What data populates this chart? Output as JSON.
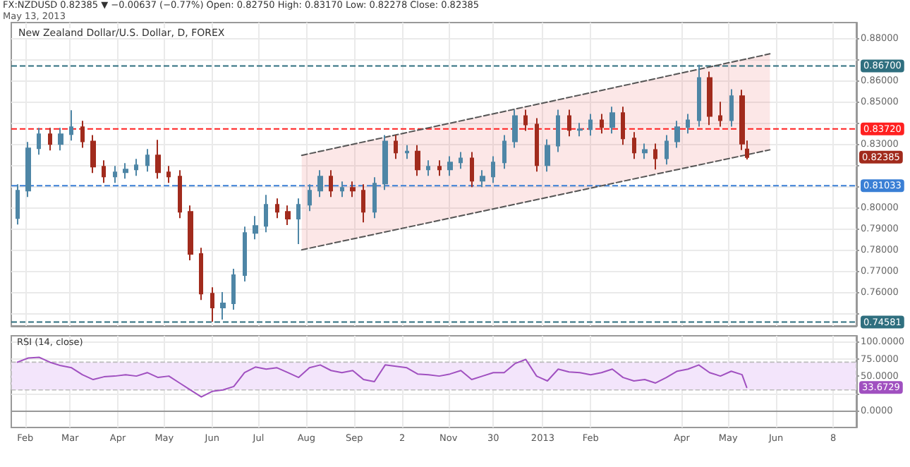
{
  "chart_data": [
    {
      "type": "candlestick",
      "title": "FX:NZDUSD 0.82385 ▼ −0.00637 (−0.77%) Open: 0.82750 High: 0.83170 Low: 0.82278 Close: 0.82385",
      "subtitle": "May 13, 2013",
      "annotations": [
        "New Zealand Dollar/U.S. Dollar, D, FOREX",
        "0.82385"
      ],
      "xlim": [
        "2012-01-23",
        "2013-07-23"
      ],
      "xticks": [
        {
          "value": "2012-02-01",
          "label": null
        },
        {
          "value": "2012-03-01",
          "label": null
        },
        {
          "value": "2012-04-01",
          "label": null
        },
        {
          "value": "2012-05-01",
          "label": null
        },
        {
          "value": "2012-06-01",
          "label": null
        },
        {
          "value": "2012-07-01",
          "label": null
        },
        {
          "value": "2012-08-01",
          "label": null
        },
        {
          "value": "2012-09-01",
          "label": null
        },
        {
          "value": "2012-10-02",
          "label": null
        },
        {
          "value": "2012-11-01",
          "label": null
        },
        {
          "value": "2012-11-30",
          "label": null
        },
        {
          "value": "2013-01-01",
          "label": null
        },
        {
          "value": "2013-02-01",
          "label": null
        },
        {
          "value": "2013-04-01",
          "label": null
        },
        {
          "value": "2013-05-01",
          "label": null
        },
        {
          "value": "2013-06-01",
          "label": null
        },
        {
          "value": "2013-07-08",
          "label": null
        }
      ],
      "ylim": [
        0.744,
        0.8875
      ],
      "yticks": [
        {
          "value": 0.75,
          "label": null
        },
        {
          "value": 0.76,
          "label": "0.76000"
        },
        {
          "value": 0.77,
          "label": "0.77000"
        },
        {
          "value": 0.78,
          "label": "0.78000"
        },
        {
          "value": 0.79,
          "label": "0.79000"
        },
        {
          "value": 0.8,
          "label": "0.80000"
        },
        {
          "value": 0.81,
          "label": null
        },
        {
          "value": 0.82,
          "label": null
        },
        {
          "value": 0.83,
          "label": "0.83000"
        },
        {
          "value": 0.84,
          "label": null
        },
        {
          "value": 0.85,
          "label": "0.85000"
        },
        {
          "value": 0.86,
          "label": "0.86000"
        },
        {
          "value": 0.87,
          "label": null
        },
        {
          "value": 0.88,
          "label": "0.88000"
        }
      ],
      "tick_labels": "y",
      "grid": true,
      "ref_lines": [
        {
          "axis": "y",
          "value": 0.867,
          "label": "0.86700",
          "color": "#2f6f7f",
          "line_style": "dashed"
        },
        {
          "axis": "y",
          "value": 0.8372,
          "label": "0.83720",
          "color": "#ff2020",
          "line_style": "dashed"
        },
        {
          "axis": "y",
          "value": 0.81033,
          "label": "0.81033",
          "color": "#3a7fd5",
          "line_style": "dashed"
        },
        {
          "axis": "y",
          "value": 0.74581,
          "label": "0.74581",
          "color": "#2f6f7f",
          "line_style": "dashed"
        }
      ],
      "series": [
        {
          "x": [
            "2012-01-27",
            "2012-02-03",
            "2012-02-10",
            "2012-02-17",
            "2012-02-24",
            "2012-03-02",
            "2012-03-09",
            "2012-03-16",
            "2012-03-23",
            "2012-03-30",
            "2012-04-06",
            "2012-04-13",
            "2012-04-20",
            "2012-04-27",
            "2012-05-04",
            "2012-05-11",
            "2012-05-18",
            "2012-05-25",
            "2012-06-01",
            "2012-06-08",
            "2012-06-15",
            "2012-06-22",
            "2012-06-29",
            "2012-07-06",
            "2012-07-13",
            "2012-07-20",
            "2012-07-27",
            "2012-08-03",
            "2012-08-10",
            "2012-08-17",
            "2012-08-24",
            "2012-08-31",
            "2012-09-07",
            "2012-09-14",
            "2012-09-21",
            "2012-09-28",
            "2012-10-05",
            "2012-10-12",
            "2012-10-19",
            "2012-10-26",
            "2012-11-02",
            "2012-11-09",
            "2012-11-16",
            "2012-11-23",
            "2012-11-30",
            "2012-12-07",
            "2012-12-14",
            "2012-12-21",
            "2012-12-28",
            "2013-01-04",
            "2013-01-11",
            "2013-01-18",
            "2013-01-25",
            "2013-02-01",
            "2013-02-08",
            "2013-02-15",
            "2013-02-22",
            "2013-03-01",
            "2013-03-08",
            "2013-03-15",
            "2013-03-22",
            "2013-03-29",
            "2013-04-05",
            "2013-04-12",
            "2013-04-19",
            "2013-04-26",
            "2013-05-03",
            "2013-05-10",
            "2013-05-13"
          ],
          "ohlc": [
            [
              0.795,
              0.811,
              0.792,
              0.808
            ],
            [
              0.808,
              0.831,
              0.805,
              0.828
            ],
            [
              0.828,
              0.8377,
              0.825,
              0.8347
            ],
            [
              0.8347,
              0.8377,
              0.827,
              0.83
            ],
            [
              0.83,
              0.8377,
              0.827,
              0.8347
            ],
            [
              0.8347,
              0.846,
              0.8317,
              0.838
            ],
            [
              0.838,
              0.841,
              0.8283,
              0.8313
            ],
            [
              0.8313,
              0.8343,
              0.8163,
              0.8193
            ],
            [
              0.8193,
              0.8223,
              0.8117,
              0.8147
            ],
            [
              0.8147,
              0.8197,
              0.8117,
              0.8167
            ],
            [
              0.8167,
              0.821,
              0.8137,
              0.818
            ],
            [
              0.818,
              0.823,
              0.815,
              0.82
            ],
            [
              0.82,
              0.8277,
              0.817,
              0.8247
            ],
            [
              0.8247,
              0.832,
              0.8137,
              0.8167
            ],
            [
              0.8167,
              0.8197,
              0.8117,
              0.8147
            ],
            [
              0.8147,
              0.8177,
              0.795,
              0.798
            ],
            [
              0.798,
              0.801,
              0.775,
              0.778
            ],
            [
              0.778,
              0.781,
              0.7563,
              0.7593
            ],
            [
              0.7593,
              0.7623,
              0.746,
              0.7527
            ],
            [
              0.7527,
              0.76,
              0.747,
              0.7547
            ],
            [
              0.7547,
              0.771,
              0.7517,
              0.768
            ],
            [
              0.768,
              0.791,
              0.765,
              0.788
            ],
            [
              0.788,
              0.796,
              0.785,
              0.7913
            ],
            [
              0.7913,
              0.806,
              0.7883,
              0.8013
            ],
            [
              0.8013,
              0.8043,
              0.795,
              0.798
            ],
            [
              0.798,
              0.801,
              0.7917,
              0.7947
            ],
            [
              0.7947,
              0.8043,
              0.7827,
              0.8013
            ],
            [
              0.8013,
              0.811,
              0.7983,
              0.808
            ],
            [
              0.808,
              0.8177,
              0.805,
              0.8147
            ],
            [
              0.8147,
              0.8177,
              0.805,
              0.808
            ],
            [
              0.808,
              0.8123,
              0.805,
              0.8093
            ],
            [
              0.8093,
              0.8123,
              0.805,
              0.808
            ],
            [
              0.808,
              0.811,
              0.793,
              0.798
            ],
            [
              0.798,
              0.8143,
              0.795,
              0.8113
            ],
            [
              0.8113,
              0.8343,
              0.8083,
              0.8313
            ],
            [
              0.8313,
              0.8343,
              0.823,
              0.826
            ],
            [
              0.826,
              0.8295,
              0.823,
              0.8265
            ],
            [
              0.8265,
              0.8295,
              0.815,
              0.818
            ],
            [
              0.818,
              0.8223,
              0.815,
              0.8193
            ],
            [
              0.8193,
              0.8223,
              0.815,
              0.818
            ],
            [
              0.818,
              0.8243,
              0.815,
              0.8213
            ],
            [
              0.8213,
              0.8263,
              0.8183,
              0.8233
            ],
            [
              0.8233,
              0.8263,
              0.8097,
              0.8127
            ],
            [
              0.8127,
              0.8177,
              0.8097,
              0.8147
            ],
            [
              0.8147,
              0.8243,
              0.8117,
              0.8213
            ],
            [
              0.8213,
              0.8343,
              0.8183,
              0.8313
            ],
            [
              0.8313,
              0.8463,
              0.8283,
              0.8433
            ],
            [
              0.8433,
              0.8463,
              0.8363,
              0.8393
            ],
            [
              0.8393,
              0.8423,
              0.817,
              0.82
            ],
            [
              0.82,
              0.8323,
              0.817,
              0.8293
            ],
            [
              0.8293,
              0.8463,
              0.8263,
              0.8433
            ],
            [
              0.8433,
              0.8463,
              0.8337,
              0.8367
            ],
            [
              0.8367,
              0.84,
              0.8337,
              0.837
            ],
            [
              0.837,
              0.8443,
              0.834,
              0.8413
            ],
            [
              0.8413,
              0.8443,
              0.835,
              0.838
            ],
            [
              0.838,
              0.8477,
              0.835,
              0.8447
            ],
            [
              0.8447,
              0.8477,
              0.8297,
              0.8327
            ],
            [
              0.8327,
              0.8357,
              0.823,
              0.826
            ],
            [
              0.826,
              0.8303,
              0.823,
              0.8273
            ],
            [
              0.8273,
              0.8303,
              0.818,
              0.8233
            ],
            [
              0.8233,
              0.8343,
              0.8203,
              0.8313
            ],
            [
              0.8313,
              0.841,
              0.8283,
              0.838
            ],
            [
              0.838,
              0.8443,
              0.835,
              0.8413
            ],
            [
              0.8413,
              0.8676,
              0.8383,
              0.8613
            ],
            [
              0.8613,
              0.8643,
              0.839,
              0.8433
            ],
            [
              0.8433,
              0.85,
              0.8383,
              0.8413
            ],
            [
              0.8413,
              0.856,
              0.8383,
              0.8527
            ],
            [
              0.8527,
              0.8557,
              0.8272,
              0.8302
            ],
            [
              0.8275,
              0.8317,
              0.82278,
              0.82385
            ]
          ],
          "colors": [
            "#4e86a6",
            "#4e86a6",
            "#4e86a6",
            "#a12b1d",
            "#4e86a6",
            "#4e86a6",
            "#a12b1d",
            "#a12b1d",
            "#a12b1d",
            "#4e86a6",
            "#4e86a6",
            "#4e86a6",
            "#4e86a6",
            "#a12b1d",
            "#a12b1d",
            "#a12b1d",
            "#a12b1d",
            "#a12b1d",
            "#a12b1d",
            "#4e86a6",
            "#4e86a6",
            "#4e86a6",
            "#4e86a6",
            "#4e86a6",
            "#a12b1d",
            "#a12b1d",
            "#4e86a6",
            "#4e86a6",
            "#4e86a6",
            "#a12b1d",
            "#4e86a6",
            "#a12b1d",
            "#a12b1d",
            "#4e86a6",
            "#4e86a6",
            "#a12b1d",
            "#4e86a6",
            "#a12b1d",
            "#4e86a6",
            "#a12b1d",
            "#4e86a6",
            "#4e86a6",
            "#a12b1d",
            "#4e86a6",
            "#4e86a6",
            "#4e86a6",
            "#4e86a6",
            "#a12b1d",
            "#a12b1d",
            "#4e86a6",
            "#4e86a6",
            "#a12b1d",
            "#4e86a6",
            "#4e86a6",
            "#a12b1d",
            "#4e86a6",
            "#a12b1d",
            "#a12b1d",
            "#4e86a6",
            "#a12b1d",
            "#4e86a6",
            "#4e86a6",
            "#4e86a6",
            "#4e86a6",
            "#a12b1d",
            "#a12b1d",
            "#4e86a6",
            "#a12b1d",
            "#a12b1d"
          ]
        },
        {
          "type": "line",
          "x": [
            "2012-07-29",
            "2013-05-28"
          ],
          "values": [
            0.8247,
            0.8727
          ],
          "lower": [
            0.78,
            0.8273
          ],
          "upper": [
            0.8247,
            0.8727
          ],
          "color": "#555555",
          "line_style": "dashed"
        },
        {
          "type": "line",
          "x": [
            "2012-07-29",
            "2013-05-28"
          ],
          "values": [
            0.78,
            0.8273
          ],
          "color": "#555555",
          "line_style": "dashed"
        }
      ]
    },
    {
      "type": "line",
      "title": "RSI (14, close)",
      "annotations": [
        "33.6729"
      ],
      "xlim": [
        "2012-01-23",
        "2013-07-23"
      ],
      "xticks": [
        {
          "value": "2012-02-01",
          "label": "Feb"
        },
        {
          "value": "2012-03-01",
          "label": "Mar"
        },
        {
          "value": "2012-04-01",
          "label": "Apr"
        },
        {
          "value": "2012-05-01",
          "label": "May"
        },
        {
          "value": "2012-06-01",
          "label": "Jun"
        },
        {
          "value": "2012-07-01",
          "label": "Jul"
        },
        {
          "value": "2012-08-01",
          "label": "Aug"
        },
        {
          "value": "2012-09-01",
          "label": "Sep"
        },
        {
          "value": "2012-10-02",
          "label": "2"
        },
        {
          "value": "2012-11-01",
          "label": "Nov"
        },
        {
          "value": "2012-11-30",
          "label": "30"
        },
        {
          "value": "2013-01-01",
          "label": "2013"
        },
        {
          "value": "2013-02-01",
          "label": "Feb"
        },
        {
          "value": "2013-04-01",
          "label": "Apr"
        },
        {
          "value": "2013-05-01",
          "label": "May"
        },
        {
          "value": "2013-06-01",
          "label": "Jun"
        },
        {
          "value": "2013-07-08",
          "label": "8"
        }
      ],
      "ylim": [
        -24,
        108
      ],
      "yticks": [
        {
          "value": 0,
          "label": "0.0000"
        },
        {
          "value": 25,
          "label": null
        },
        {
          "value": 50,
          "label": "50.0000"
        },
        {
          "value": 75,
          "label": "75.0000"
        },
        {
          "value": 100,
          "label": "100.0000"
        }
      ],
      "grid": true,
      "bands": [
        {
          "axis": "y",
          "from": 30,
          "to": 70,
          "color": "#f3e5fb"
        }
      ],
      "series": [
        {
          "color": "#a050c0",
          "x": [
            "2012-01-27",
            "2012-02-03",
            "2012-02-10",
            "2012-02-17",
            "2012-02-24",
            "2012-03-02",
            "2012-03-09",
            "2012-03-16",
            "2012-03-23",
            "2012-03-30",
            "2012-04-06",
            "2012-04-13",
            "2012-04-20",
            "2012-04-27",
            "2012-05-04",
            "2012-05-11",
            "2012-05-18",
            "2012-05-25",
            "2012-06-01",
            "2012-06-08",
            "2012-06-15",
            "2012-06-22",
            "2012-06-29",
            "2012-07-06",
            "2012-07-13",
            "2012-07-20",
            "2012-07-27",
            "2012-08-03",
            "2012-08-10",
            "2012-08-17",
            "2012-08-24",
            "2012-08-31",
            "2012-09-07",
            "2012-09-14",
            "2012-09-21",
            "2012-09-28",
            "2012-10-05",
            "2012-10-12",
            "2012-10-19",
            "2012-10-26",
            "2012-11-02",
            "2012-11-09",
            "2012-11-16",
            "2012-11-23",
            "2012-11-30",
            "2012-12-07",
            "2012-12-14",
            "2012-12-21",
            "2012-12-28",
            "2013-01-04",
            "2013-01-11",
            "2013-01-18",
            "2013-01-25",
            "2013-02-01",
            "2013-02-08",
            "2013-02-15",
            "2013-02-22",
            "2013-03-01",
            "2013-03-08",
            "2013-03-15",
            "2013-03-22",
            "2013-03-29",
            "2013-04-05",
            "2013-04-12",
            "2013-04-19",
            "2013-04-26",
            "2013-05-03",
            "2013-05-10",
            "2013-05-13"
          ],
          "values": [
            70,
            76,
            77,
            70,
            65,
            62,
            52,
            45,
            49,
            50,
            52,
            50,
            55,
            48,
            50,
            40,
            30,
            20,
            28,
            30,
            35,
            55,
            63,
            60,
            62,
            55,
            48,
            62,
            66,
            58,
            55,
            58,
            45,
            42,
            66,
            64,
            62,
            53,
            52,
            50,
            53,
            58,
            45,
            50,
            55,
            55,
            68,
            74,
            50,
            43,
            60,
            56,
            55,
            52,
            55,
            60,
            48,
            43,
            45,
            40,
            48,
            57,
            60,
            66,
            55,
            50,
            57,
            52,
            33.6729
          ]
        }
      ]
    }
  ]
}
